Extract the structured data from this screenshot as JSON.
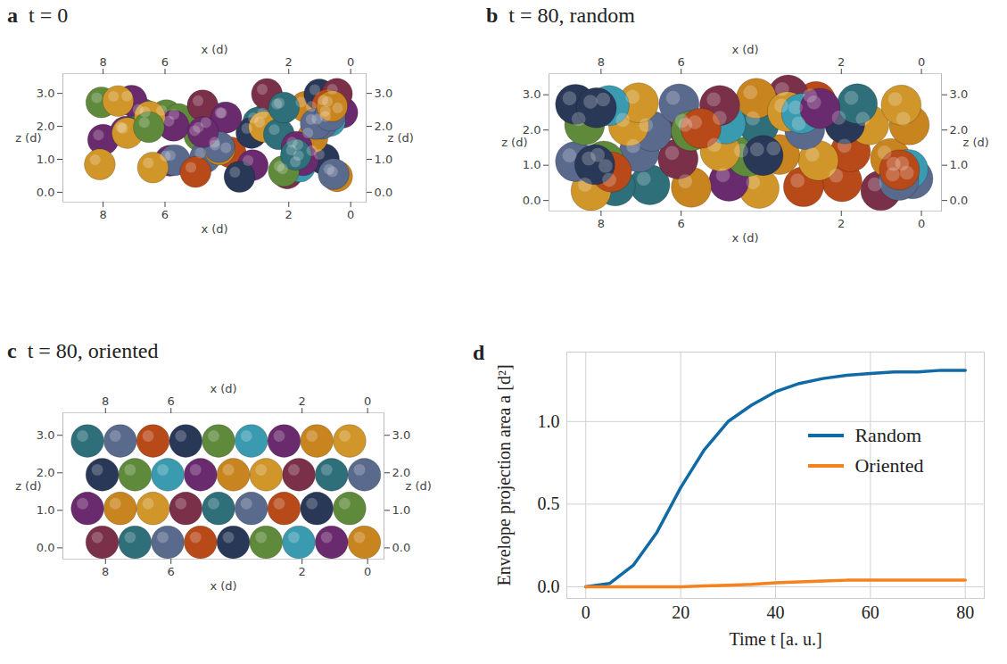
{
  "chart_data": [
    {
      "type": "scene",
      "label": "a",
      "title": "t = 0",
      "x_label": "x (d)",
      "y_label": "z (d)",
      "xlim": [
        9.3,
        -0.5
      ],
      "ylim": [
        -0.3,
        3.6
      ],
      "xticks": [
        8,
        6,
        2,
        0
      ],
      "yticks": [
        0,
        1,
        2,
        3
      ]
    },
    {
      "type": "scene",
      "label": "b",
      "title": "t = 80, random",
      "x_label": "x (d)",
      "y_label": "z (d)",
      "xlim": [
        9.3,
        -0.5
      ],
      "ylim": [
        -0.3,
        3.6
      ],
      "xticks": [
        8,
        6,
        2,
        0
      ],
      "yticks": [
        0,
        1,
        2,
        3
      ]
    },
    {
      "type": "scene",
      "label": "c",
      "title": "t = 80, oriented",
      "x_label": "x (d)",
      "y_label": "z (d)",
      "xlim": [
        9.3,
        -0.5
      ],
      "ylim": [
        -0.3,
        3.6
      ],
      "xticks": [
        8,
        6,
        2,
        0
      ],
      "yticks": [
        0,
        1,
        2,
        3
      ]
    },
    {
      "type": "line",
      "label": "d",
      "x_label": "Time t [a. u.]",
      "y_label": "Envelope projection area a [d²]",
      "x": [
        0,
        5,
        10,
        15,
        20,
        25,
        30,
        35,
        40,
        45,
        50,
        55,
        60,
        65,
        70,
        75,
        80
      ],
      "series": [
        {
          "name": "Random",
          "color": "#0f6aa6",
          "values": [
            0,
            0.02,
            0.13,
            0.33,
            0.6,
            0.83,
            1.0,
            1.1,
            1.18,
            1.23,
            1.26,
            1.28,
            1.29,
            1.3,
            1.3,
            1.31,
            1.31
          ]
        },
        {
          "name": "Oriented",
          "color": "#f5821f",
          "values": [
            0,
            0,
            0,
            0,
            0,
            0.005,
            0.01,
            0.015,
            0.025,
            0.03,
            0.035,
            0.04,
            0.04,
            0.04,
            0.04,
            0.04,
            0.04
          ]
        }
      ],
      "xlim": [
        -4,
        84
      ],
      "ylim": [
        -0.07,
        1.42
      ],
      "xticks": [
        0,
        20,
        40,
        60,
        80
      ],
      "yticks": [
        {
          "value": 0,
          "label": "0.0"
        },
        {
          "value": 0.5,
          "label": "0.5"
        },
        {
          "value": 1,
          "label": "1.0"
        }
      ],
      "grid": true,
      "legend": "right"
    }
  ]
}
